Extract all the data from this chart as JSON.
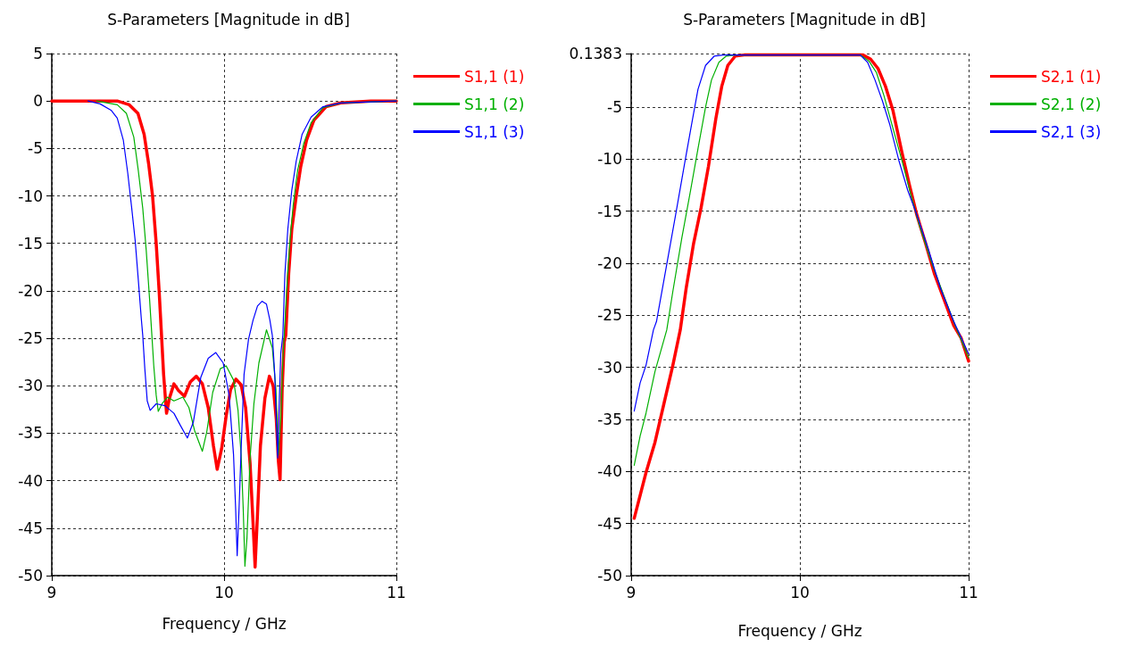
{
  "chart_data": [
    {
      "type": "line",
      "title": "S-Parameters [Magnitude in dB]",
      "xlabel": "Frequency / GHz",
      "xlim": [
        9,
        11
      ],
      "xticks": [
        9,
        10,
        11
      ],
      "ylim": [
        -50,
        5
      ],
      "yticks": [
        5,
        0,
        -5,
        -10,
        -15,
        -20,
        -25,
        -30,
        -35,
        -40,
        -45,
        -50
      ],
      "grid": true,
      "legend": "top right",
      "series": [
        {
          "name": "S1,1 (1)",
          "color": "#ff0000",
          "x": [
            9,
            9.38,
            9.45,
            9.5,
            9.536,
            9.562,
            9.585,
            9.606,
            9.623,
            9.637,
            9.649,
            9.666,
            9.683,
            9.709,
            9.735,
            9.77,
            9.804,
            9.839,
            9.874,
            9.908,
            9.938,
            9.96,
            9.986,
            10.012,
            10.038,
            10.069,
            10.099,
            10.125,
            10.151,
            10.168,
            10.18,
            10.194,
            10.211,
            10.237,
            10.263,
            10.285,
            10.303,
            10.315,
            10.325,
            10.337,
            10.349,
            10.358,
            10.375,
            10.393,
            10.419,
            10.445,
            10.479,
            10.522,
            10.592,
            10.678,
            10.851,
            11
          ],
          "values": [
            0,
            0,
            -0.4,
            -1.3,
            -3.5,
            -6.6,
            -10,
            -15,
            -20,
            -24.7,
            -28.8,
            -32.9,
            -31.3,
            -29.8,
            -30.5,
            -31.1,
            -29.6,
            -29,
            -29.8,
            -32.3,
            -36.3,
            -38.8,
            -36.6,
            -33.2,
            -30.4,
            -29.3,
            -29.9,
            -32.3,
            -38.2,
            -44.4,
            -49.1,
            -43.5,
            -36.3,
            -31.3,
            -29,
            -30,
            -33.5,
            -37.9,
            -39.9,
            -30.4,
            -25.4,
            -24.7,
            -18.2,
            -13.5,
            -10,
            -6.9,
            -4.1,
            -2,
            -0.6,
            -0.2,
            0,
            0
          ]
        },
        {
          "name": "S1,1 (2)",
          "color": "#00b000",
          "x": [
            9.26,
            9.38,
            9.433,
            9.476,
            9.502,
            9.528,
            9.548,
            9.567,
            9.581,
            9.592,
            9.606,
            9.618,
            9.64,
            9.671,
            9.709,
            9.761,
            9.796,
            9.83,
            9.874,
            9.9,
            9.934,
            9.978,
            10.012,
            10.055,
            10.081,
            10.099,
            10.111,
            10.121,
            10.133,
            10.151,
            10.173,
            10.202,
            10.246,
            10.28,
            10.301,
            10.315,
            10.329,
            10.341,
            10.349,
            10.367,
            10.384,
            10.401,
            10.427,
            10.462,
            10.505,
            10.574,
            10.678,
            11
          ],
          "values": [
            0,
            -0.4,
            -1.3,
            -3.8,
            -7.3,
            -11.3,
            -15.7,
            -20.7,
            -24.7,
            -27.9,
            -31,
            -32.7,
            -31.9,
            -31.2,
            -31.6,
            -31.2,
            -32.3,
            -34.8,
            -36.9,
            -34.8,
            -30.7,
            -28.2,
            -27.9,
            -29.4,
            -32.6,
            -37.3,
            -42.9,
            -49,
            -46,
            -37.6,
            -31.9,
            -27.6,
            -24.1,
            -26,
            -30.4,
            -37.3,
            -33.5,
            -27.3,
            -24.7,
            -18.8,
            -14.4,
            -11,
            -7.3,
            -4.5,
            -2.3,
            -0.7,
            -0.2,
            0
          ]
        },
        {
          "name": "S1,1 (3)",
          "color": "#0000ff",
          "x": [
            9.21,
            9.28,
            9.346,
            9.38,
            9.415,
            9.441,
            9.464,
            9.484,
            9.502,
            9.519,
            9.528,
            9.54,
            9.554,
            9.571,
            9.606,
            9.657,
            9.709,
            9.744,
            9.787,
            9.822,
            9.865,
            9.908,
            9.952,
            9.995,
            10.029,
            10.055,
            10.067,
            10.076,
            10.087,
            10.099,
            10.116,
            10.142,
            10.168,
            10.194,
            10.22,
            10.246,
            10.266,
            10.28,
            10.294,
            10.306,
            10.311,
            10.32,
            10.329,
            10.341,
            10.353,
            10.37,
            10.393,
            10.419,
            10.453,
            10.505,
            10.574,
            10.678,
            11
          ],
          "values": [
            0,
            -0.3,
            -1,
            -1.8,
            -4.1,
            -7.6,
            -11.3,
            -14.7,
            -18.8,
            -22.8,
            -24.7,
            -28.2,
            -31.6,
            -32.6,
            -31.9,
            -32.1,
            -32.9,
            -34.1,
            -35.5,
            -33.8,
            -29.1,
            -27.1,
            -26.5,
            -27.6,
            -31,
            -37.3,
            -42.9,
            -47.9,
            -42.9,
            -36.6,
            -28.8,
            -25.1,
            -23.1,
            -21.6,
            -21.1,
            -21.4,
            -23.1,
            -24.7,
            -28.8,
            -35.1,
            -37.6,
            -31.9,
            -26.6,
            -24.7,
            -18.2,
            -13.5,
            -9.4,
            -6.3,
            -3.5,
            -1.7,
            -0.6,
            -0.2,
            0
          ]
        }
      ]
    },
    {
      "type": "line",
      "title": "S-Parameters [Magnitude in dB]",
      "xlabel": "Frequency / GHz",
      "xlim": [
        9,
        11
      ],
      "xticks": [
        9,
        10,
        11
      ],
      "ylim": [
        -50,
        0.1383
      ],
      "yticks": [
        0.1383,
        -5,
        -10,
        -15,
        -20,
        -25,
        -30,
        -35,
        -40,
        -45,
        -50
      ],
      "grid": true,
      "legend": "top right",
      "series": [
        {
          "name": "S2,1 (1)",
          "color": "#ff0000",
          "x": [
            9.018,
            9.088,
            9.141,
            9.194,
            9.247,
            9.291,
            9.326,
            9.37,
            9.414,
            9.458,
            9.502,
            9.537,
            9.573,
            9.617,
            9.67,
            10.374,
            10.419,
            10.463,
            10.507,
            10.551,
            10.604,
            10.648,
            10.692,
            10.745,
            10.797,
            10.85,
            10.912,
            10.956,
            11
          ],
          "values": [
            -44.5,
            -40.1,
            -37.2,
            -33.5,
            -29.8,
            -26.4,
            -22.4,
            -18.1,
            -14.7,
            -10.7,
            -6.1,
            -3,
            -1,
            -0.1,
            0,
            0,
            -0.4,
            -1.3,
            -3,
            -5.3,
            -9.3,
            -12.4,
            -15.3,
            -18.1,
            -21,
            -23.3,
            -26,
            -27.2,
            -29.4
          ]
        },
        {
          "name": "S2,1 (2)",
          "color": "#00b000",
          "x": [
            9.018,
            9.053,
            9.088,
            9.141,
            9.211,
            9.247,
            9.3,
            9.352,
            9.396,
            9.441,
            9.476,
            9.52,
            9.564,
            9.617,
            10.357,
            10.41,
            10.454,
            10.498,
            10.551,
            10.604,
            10.656,
            10.709,
            10.78,
            10.85,
            10.921,
            11
          ],
          "values": [
            -39.4,
            -36.6,
            -34.4,
            -30.4,
            -26.4,
            -22.7,
            -17.6,
            -13,
            -9,
            -5,
            -2.4,
            -0.7,
            -0.1,
            0,
            0,
            -0.6,
            -1.7,
            -3.9,
            -7,
            -10.1,
            -13.3,
            -16.4,
            -19.9,
            -23,
            -26,
            -29.1
          ]
        },
        {
          "name": "S2,1 (3)",
          "color": "#0000ff",
          "x": [
            9.018,
            9.053,
            9.088,
            9.132,
            9.15,
            9.211,
            9.264,
            9.317,
            9.361,
            9.396,
            9.441,
            9.493,
            9.546,
            10.357,
            10.401,
            10.445,
            10.489,
            10.533,
            10.586,
            10.639,
            10.692,
            10.762,
            10.833,
            10.912,
            11
          ],
          "values": [
            -34.2,
            -31.5,
            -29.8,
            -26.4,
            -25.6,
            -20.1,
            -15.3,
            -10.4,
            -6.4,
            -3.3,
            -1,
            -0.1,
            0,
            0,
            -0.7,
            -2.4,
            -4.4,
            -6.7,
            -10.1,
            -13,
            -15.3,
            -18.7,
            -22.4,
            -25.6,
            -28.7
          ]
        }
      ]
    }
  ]
}
